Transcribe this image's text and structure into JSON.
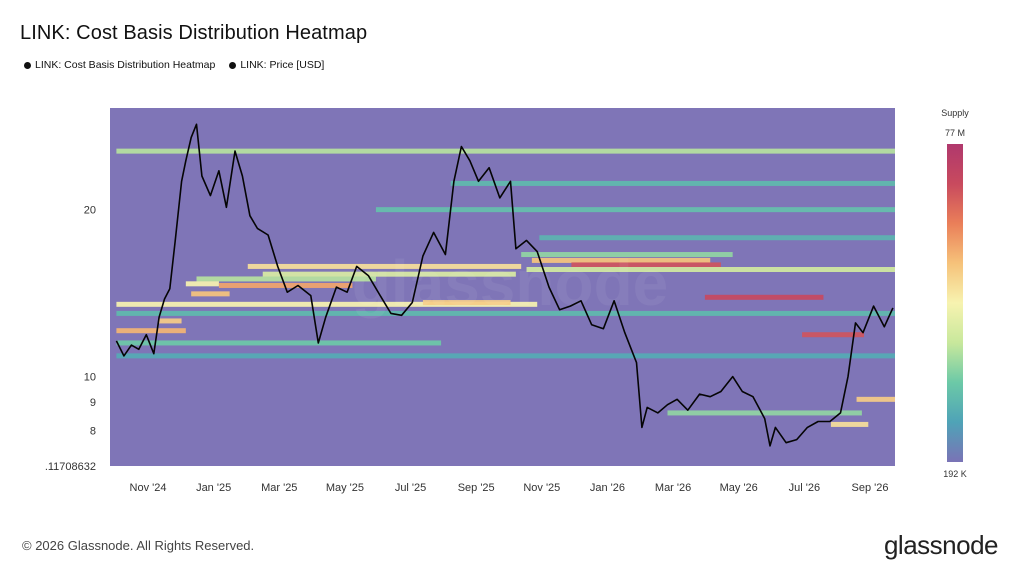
{
  "header": {
    "title": "LINK: Cost Basis Distribution Heatmap"
  },
  "legend": [
    {
      "label": "LINK: Cost Basis Distribution Heatmap",
      "color": "#111111"
    },
    {
      "label": "LINK: Price [USD]",
      "color": "#111111"
    }
  ],
  "chart_data": {
    "type": "heatmap",
    "title": "LINK: Cost Basis Distribution Heatmap",
    "y_scale": "log",
    "y_ticks": [
      {
        "value": 8,
        "label": "8"
      },
      {
        "value": 9,
        "label": "9"
      },
      {
        "value": 10,
        "label": "10"
      },
      {
        "value": 20,
        "label": "20"
      }
    ],
    "y_min_label": ".11708632",
    "x_ticks": [
      "Nov '24",
      "Jan '25",
      "Mar '25",
      "May '25",
      "Jul '25",
      "Sep '25",
      "Nov '25",
      "Jan '26",
      "Mar '26",
      "May '26",
      "Jul '26",
      "Sep '26"
    ],
    "colorbar": {
      "title": "Supply",
      "max_label": "77 M",
      "min_label": "192 K",
      "colors": [
        "#7a73b6",
        "#4fa3b7",
        "#6cc9a7",
        "#c8e89c",
        "#f7f3b0",
        "#f6c27a",
        "#ea7f59",
        "#c84a5e",
        "#b0386d"
      ]
    },
    "background_color": "#7f75b7",
    "price_series": {
      "name": "LINK: Price [USD]",
      "points": [
        [
          "2024-10-01",
          11.6
        ],
        [
          "2024-10-08",
          10.9
        ],
        [
          "2024-10-15",
          11.4
        ],
        [
          "2024-10-22",
          11.2
        ],
        [
          "2024-10-29",
          11.9
        ],
        [
          "2024-11-05",
          11.0
        ],
        [
          "2024-11-10",
          12.8
        ],
        [
          "2024-11-15",
          13.8
        ],
        [
          "2024-11-20",
          14.4
        ],
        [
          "2024-11-25",
          17.5
        ],
        [
          "2024-12-01",
          22.5
        ],
        [
          "2024-12-05",
          24.5
        ],
        [
          "2024-12-10",
          27.0
        ],
        [
          "2024-12-15",
          28.5
        ],
        [
          "2024-12-20",
          23.0
        ],
        [
          "2024-12-28",
          21.2
        ],
        [
          "2025-01-05",
          23.5
        ],
        [
          "2025-01-12",
          20.2
        ],
        [
          "2025-01-20",
          25.5
        ],
        [
          "2025-01-27",
          23.0
        ],
        [
          "2025-02-03",
          19.5
        ],
        [
          "2025-02-10",
          18.5
        ],
        [
          "2025-02-20",
          18.0
        ],
        [
          "2025-03-01",
          15.8
        ],
        [
          "2025-03-10",
          14.2
        ],
        [
          "2025-03-20",
          14.6
        ],
        [
          "2025-04-01",
          14.0
        ],
        [
          "2025-04-08",
          11.5
        ],
        [
          "2025-04-15",
          12.8
        ],
        [
          "2025-04-25",
          14.5
        ],
        [
          "2025-05-05",
          14.2
        ],
        [
          "2025-05-14",
          15.8
        ],
        [
          "2025-05-25",
          15.2
        ],
        [
          "2025-06-05",
          14.0
        ],
        [
          "2025-06-15",
          13.0
        ],
        [
          "2025-06-25",
          12.9
        ],
        [
          "2025-07-05",
          13.6
        ],
        [
          "2025-07-15",
          16.5
        ],
        [
          "2025-07-25",
          18.2
        ],
        [
          "2025-08-05",
          16.6
        ],
        [
          "2025-08-13",
          22.5
        ],
        [
          "2025-08-20",
          26.0
        ],
        [
          "2025-08-28",
          24.5
        ],
        [
          "2025-09-05",
          22.5
        ],
        [
          "2025-09-15",
          23.8
        ],
        [
          "2025-09-25",
          21.0
        ],
        [
          "2025-10-05",
          22.5
        ],
        [
          "2025-10-10",
          17.0
        ],
        [
          "2025-10-20",
          17.6
        ],
        [
          "2025-10-30",
          16.8
        ],
        [
          "2025-11-10",
          14.5
        ],
        [
          "2025-11-20",
          13.2
        ],
        [
          "2025-11-30",
          13.4
        ],
        [
          "2025-12-10",
          13.7
        ],
        [
          "2025-12-20",
          12.4
        ],
        [
          "2025-12-31",
          12.2
        ],
        [
          "2026-01-10",
          13.7
        ],
        [
          "2026-01-20",
          12.0
        ],
        [
          "2026-01-31",
          10.6
        ],
        [
          "2026-02-05",
          8.1
        ],
        [
          "2026-02-10",
          8.8
        ],
        [
          "2026-02-20",
          8.6
        ],
        [
          "2026-03-01",
          8.9
        ],
        [
          "2026-03-10",
          9.1
        ],
        [
          "2026-03-20",
          8.7
        ],
        [
          "2026-03-31",
          9.3
        ],
        [
          "2026-04-10",
          9.2
        ],
        [
          "2026-04-20",
          9.4
        ],
        [
          "2026-05-01",
          10.0
        ],
        [
          "2026-05-10",
          9.4
        ],
        [
          "2026-05-20",
          9.2
        ],
        [
          "2026-05-31",
          8.4
        ],
        [
          "2026-06-05",
          7.5
        ],
        [
          "2026-06-10",
          8.1
        ],
        [
          "2026-06-20",
          7.6
        ],
        [
          "2026-06-30",
          7.7
        ],
        [
          "2026-07-10",
          8.1
        ],
        [
          "2026-07-20",
          8.3
        ],
        [
          "2026-07-31",
          8.3
        ],
        [
          "2026-08-10",
          8.6
        ],
        [
          "2026-08-17",
          10.0
        ],
        [
          "2026-08-24",
          12.5
        ],
        [
          "2026-08-31",
          12.0
        ],
        [
          "2026-09-10",
          13.4
        ],
        [
          "2026-09-20",
          12.3
        ],
        [
          "2026-09-28",
          13.3
        ]
      ]
    },
    "heatmap_bands": [
      {
        "price": 25.5,
        "from": "2024-10-01",
        "to": "2026-09-30",
        "level": 0.35
      },
      {
        "price": 22.3,
        "from": "2025-08-10",
        "to": "2026-09-30",
        "level": 0.2
      },
      {
        "price": 20.0,
        "from": "2025-06-01",
        "to": "2026-09-30",
        "level": 0.22
      },
      {
        "price": 17.8,
        "from": "2025-11-01",
        "to": "2026-09-30",
        "level": 0.18
      },
      {
        "price": 16.6,
        "from": "2025-10-15",
        "to": "2026-05-01",
        "level": 0.3
      },
      {
        "price": 16.2,
        "from": "2025-10-25",
        "to": "2026-04-10",
        "level": 0.62
      },
      {
        "price": 15.9,
        "from": "2025-12-01",
        "to": "2026-04-20",
        "level": 0.85
      },
      {
        "price": 15.6,
        "from": "2025-10-20",
        "to": "2026-09-30",
        "level": 0.4
      },
      {
        "price": 15.8,
        "from": "2025-02-01",
        "to": "2025-10-15",
        "level": 0.55
      },
      {
        "price": 15.3,
        "from": "2025-02-15",
        "to": "2025-10-10",
        "level": 0.42
      },
      {
        "price": 15.0,
        "from": "2024-12-15",
        "to": "2025-06-01",
        "level": 0.35
      },
      {
        "price": 14.7,
        "from": "2024-12-05",
        "to": "2025-01-05",
        "level": 0.5
      },
      {
        "price": 14.6,
        "from": "2025-01-05",
        "to": "2025-05-10",
        "level": 0.68
      },
      {
        "price": 14.1,
        "from": "2024-12-10",
        "to": "2025-01-15",
        "level": 0.62
      },
      {
        "price": 13.9,
        "from": "2026-04-05",
        "to": "2026-07-25",
        "level": 0.88
      },
      {
        "price": 13.5,
        "from": "2024-10-01",
        "to": "2025-10-30",
        "level": 0.5
      },
      {
        "price": 13.6,
        "from": "2025-07-15",
        "to": "2025-10-05",
        "level": 0.6
      },
      {
        "price": 13.0,
        "from": "2024-10-01",
        "to": "2026-09-30",
        "level": 0.2
      },
      {
        "price": 12.6,
        "from": "2024-11-10",
        "to": "2024-12-01",
        "level": 0.6
      },
      {
        "price": 12.1,
        "from": "2024-10-01",
        "to": "2024-12-05",
        "level": 0.65
      },
      {
        "price": 11.9,
        "from": "2026-07-05",
        "to": "2026-09-01",
        "level": 0.85
      },
      {
        "price": 11.5,
        "from": "2024-10-01",
        "to": "2025-08-01",
        "level": 0.25
      },
      {
        "price": 10.9,
        "from": "2024-10-01",
        "to": "2026-09-30",
        "level": 0.15
      },
      {
        "price": 9.1,
        "from": "2026-08-25",
        "to": "2026-09-30",
        "level": 0.6
      },
      {
        "price": 8.6,
        "from": "2026-03-01",
        "to": "2026-08-30",
        "level": 0.3
      },
      {
        "price": 8.2,
        "from": "2026-08-01",
        "to": "2026-09-05",
        "level": 0.55
      }
    ]
  },
  "footer": {
    "copyright": "© 2026 Glassnode. All Rights Reserved.",
    "brand": "glassnode"
  }
}
